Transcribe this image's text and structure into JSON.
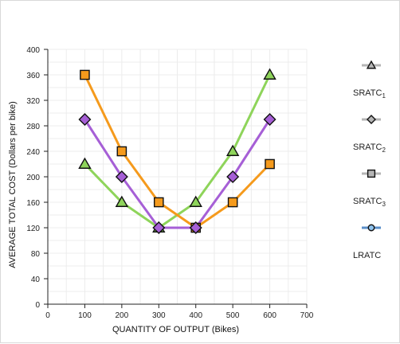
{
  "chart_data": {
    "type": "line",
    "xlabel": "QUANTITY OF OUTPUT (Bikes)",
    "ylabel": "AVERAGE TOTAL COST (Dollars per bike)",
    "xlim": [
      0,
      700
    ],
    "ylim": [
      0,
      400
    ],
    "x_ticks": [
      0,
      100,
      200,
      300,
      400,
      500,
      600,
      700
    ],
    "y_ticks": [
      0,
      40,
      80,
      120,
      160,
      200,
      240,
      280,
      320,
      360,
      400
    ],
    "grid": true,
    "legend_position": "right",
    "series": [
      {
        "key": "sratc1",
        "name": "SRATC",
        "subscript": "1",
        "marker": "triangle",
        "line_color": "#8ed45a",
        "marker_color": "#8ed45a",
        "x": [
          100,
          200,
          300,
          400,
          500,
          600
        ],
        "y": [
          220,
          160,
          120,
          160,
          240,
          360
        ]
      },
      {
        "key": "sratc2",
        "name": "SRATC",
        "subscript": "2",
        "marker": "diamond",
        "line_color": "#a65fd6",
        "marker_color": "#a65fd6",
        "x": [
          100,
          200,
          300,
          400,
          500,
          600
        ],
        "y": [
          290,
          200,
          120,
          120,
          200,
          290
        ]
      },
      {
        "key": "sratc3",
        "name": "SRATC",
        "subscript": "3",
        "marker": "square",
        "line_color": "#f59a1c",
        "marker_color": "#f59a1c",
        "x": [
          100,
          200,
          300,
          400,
          500,
          600
        ],
        "y": [
          360,
          240,
          160,
          120,
          160,
          220
        ]
      },
      {
        "key": "lratc",
        "name": "LRATC",
        "subscript": "",
        "marker": "circle",
        "line_color": "#5b8fc9",
        "marker_color": "#8fc3ee",
        "x": [],
        "y": []
      }
    ]
  }
}
